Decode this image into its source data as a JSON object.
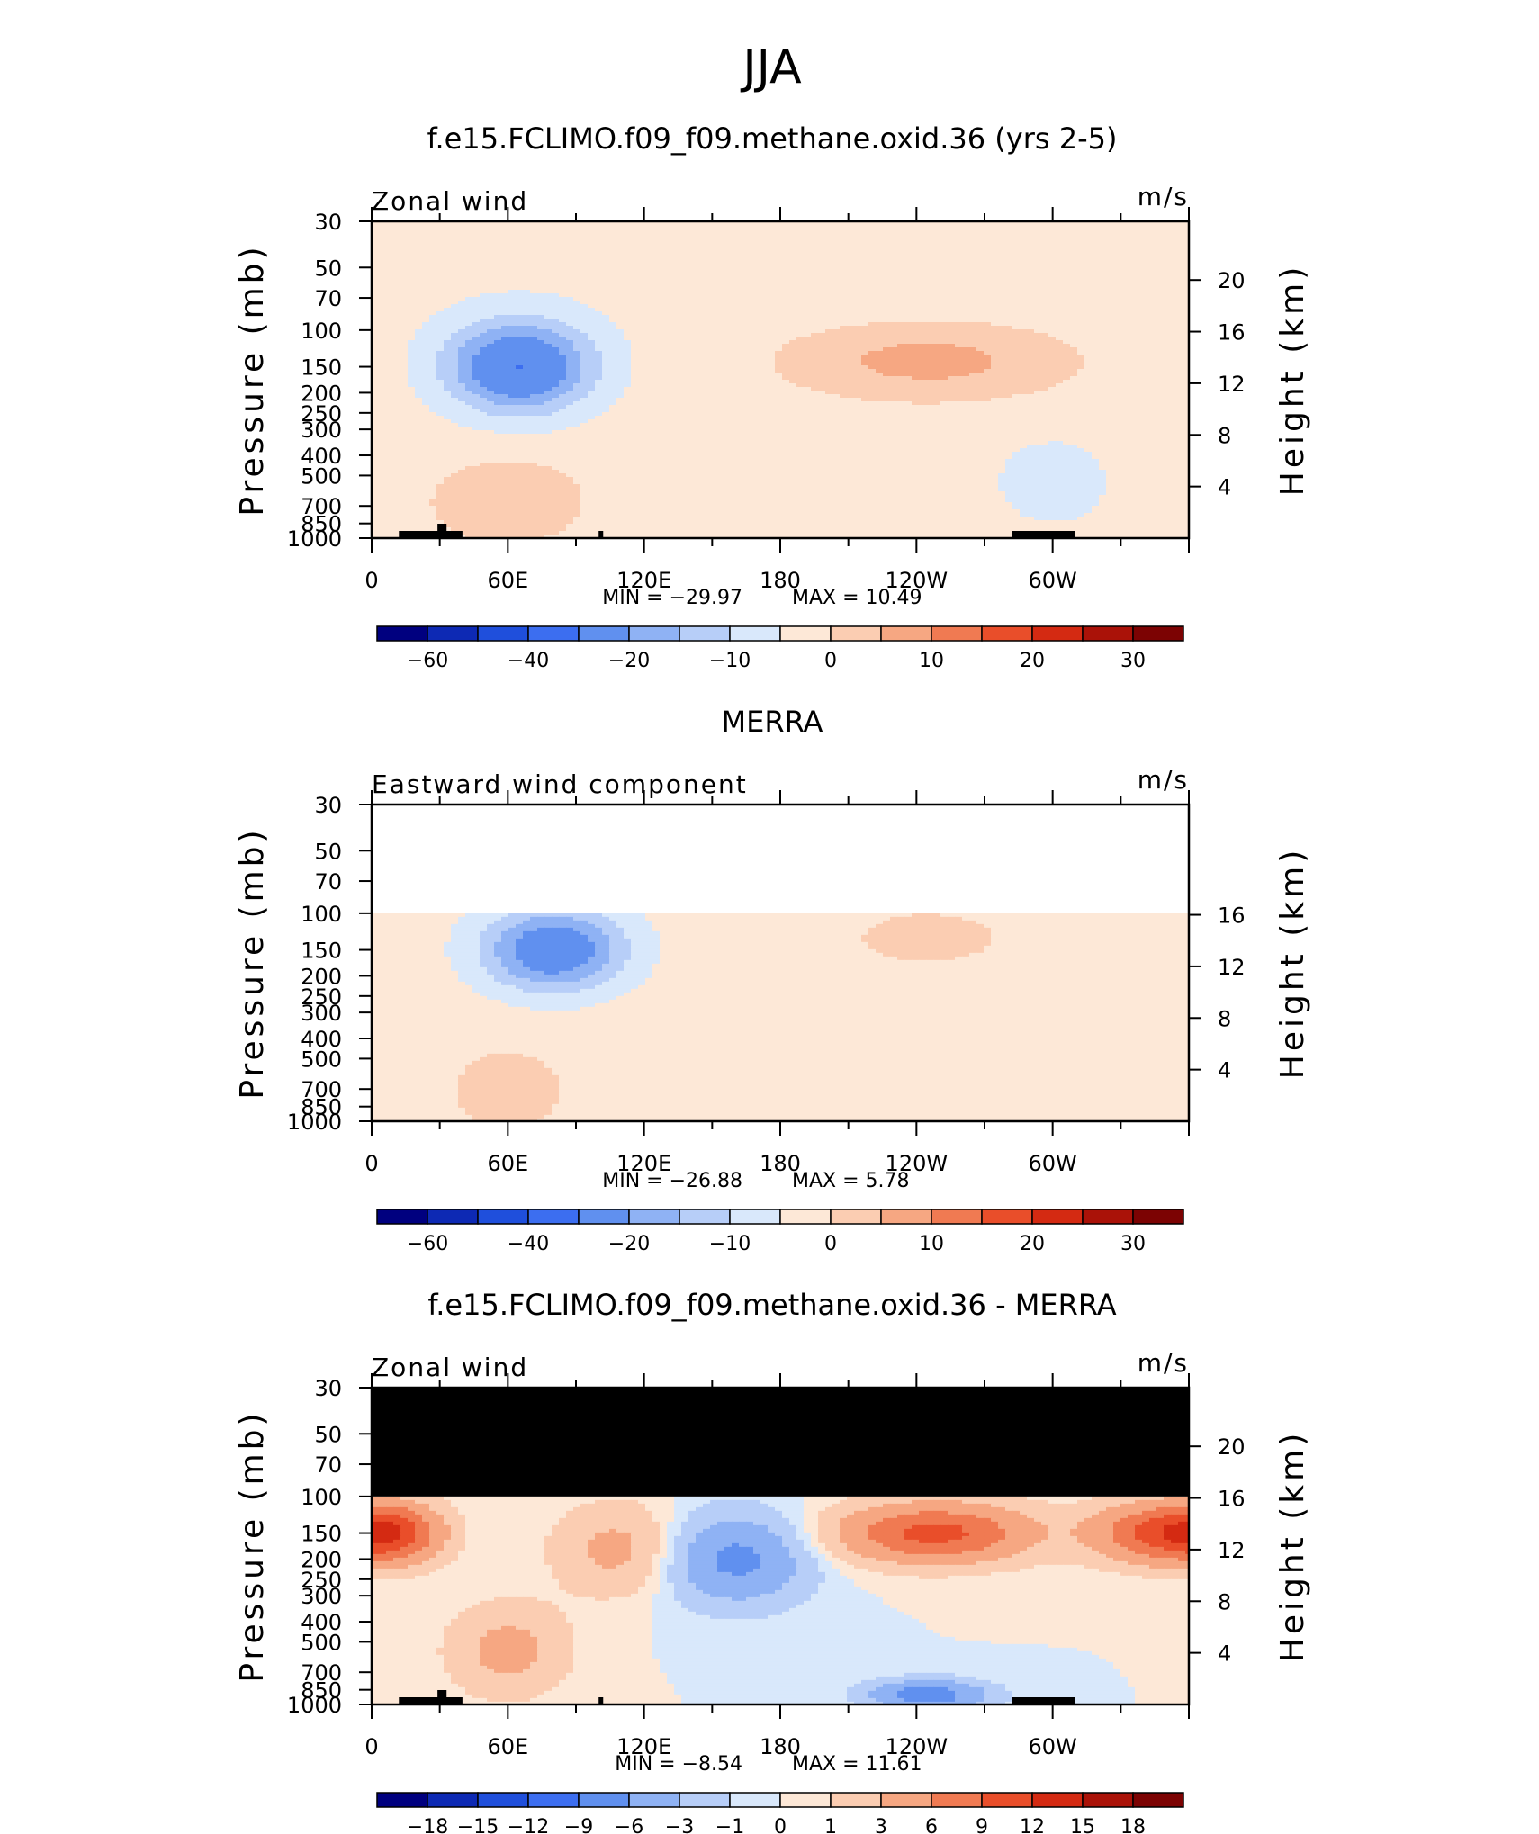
{
  "main_title": "JJA",
  "units": "m/s",
  "x_ticks": [
    "0",
    "60E",
    "120E",
    "180",
    "120W",
    "60W"
  ],
  "p_ticks": [
    "30",
    "50",
    "70",
    "100",
    "150",
    "200",
    "250",
    "300",
    "400",
    "500",
    "700",
    "850",
    "1000"
  ],
  "left_axis_label": "Pressure (mb)",
  "right_axis_label": "Height (km)",
  "colors": {
    "abs": [
      "#00007f",
      "#0d29b4",
      "#1f4fdc",
      "#3c6ef0",
      "#6090ef",
      "#8fb2f4",
      "#b7cef8",
      "#d9e8fb",
      "#fde8d7",
      "#fbcdb2",
      "#f6a782",
      "#f07a52",
      "#e94e2a",
      "#d42a12",
      "#aa1208",
      "#7c0303"
    ],
    "diff": [
      "#00007f",
      "#0d29b4",
      "#1f4fdc",
      "#3c6ef0",
      "#6090ef",
      "#8fb2f4",
      "#b7cef8",
      "#d9e8fb",
      "#fde8d7",
      "#fbcdb2",
      "#f6a782",
      "#f07a52",
      "#e94e2a",
      "#d42a12",
      "#aa1208",
      "#7c0303"
    ],
    "terrain": "#000000",
    "missing": "#ffffff"
  },
  "panels": [
    {
      "title": "f.e15.FCLIMO.f09_f09.methane.oxid.36 (yrs 2-5)",
      "var_label": "Zonal wind",
      "units": "m/s",
      "min_text": "MIN  =  −29.97",
      "max_text": "MAX  =    10.49",
      "height_ticks": [
        "20",
        "16",
        "12",
        "8",
        "4"
      ],
      "colorbar_labels": [
        "−60",
        "−40",
        "−20",
        "−10",
        "0",
        "10",
        "20",
        "30"
      ]
    },
    {
      "title": "MERRA",
      "var_label": "Eastward wind component",
      "units": "m/s",
      "min_text": "MIN  =  −26.88",
      "max_text": "MAX  =      5.78",
      "height_ticks": [
        "16",
        "12",
        "8",
        "4"
      ],
      "colorbar_labels": [
        "−60",
        "−40",
        "−20",
        "−10",
        "0",
        "10",
        "20",
        "30"
      ]
    },
    {
      "title": "f.e15.FCLIMO.f09_f09.methane.oxid.36 - MERRA",
      "var_label": "Zonal wind",
      "units": "m/s",
      "min_text": "MIN  =    −8.54",
      "max_text": "MAX  =    11.61",
      "height_ticks": [
        "20",
        "16",
        "12",
        "8",
        "4"
      ],
      "colorbar_labels": [
        "−18",
        "−15",
        "−12",
        "−9",
        "−6",
        "−3",
        "−1",
        "0",
        "1",
        "3",
        "6",
        "9",
        "12",
        "15",
        "18"
      ]
    }
  ],
  "chart_data": [
    {
      "type": "heatmap",
      "title": "f.e15.FCLIMO.f09_f09.methane.oxid.36 (yrs 2-5)",
      "variable": "Zonal wind",
      "units": "m/s",
      "x_range_deg": [
        0,
        360
      ],
      "y_range_mb": [
        1000,
        30
      ],
      "min": -29.97,
      "max": 10.49,
      "levels": [
        -70,
        -60,
        -50,
        -40,
        -30,
        -20,
        -15,
        -10,
        -5,
        0,
        5,
        10,
        15,
        20,
        25,
        30,
        35
      ],
      "features": [
        {
          "type": "jet",
          "lon": 65,
          "p": 150,
          "value": -27,
          "lon_width": 22,
          "p_log_width": 0.15
        },
        {
          "type": "jet",
          "lon": 245,
          "p": 140,
          "value": 10,
          "lon_width": 45,
          "p_log_width": 0.13
        },
        {
          "type": "jet",
          "lon": 60,
          "p": 650,
          "value": 7,
          "lon_width": 22,
          "p_log_width": 0.13
        },
        {
          "type": "jet",
          "lon": 300,
          "p": 550,
          "value": -6,
          "lon_width": 18,
          "p_log_width": 0.15
        }
      ],
      "background": {
        "upper_value": -4,
        "lower_value": -2
      },
      "surface": "land masking near lon 12-40, 100, 282-310"
    },
    {
      "type": "heatmap",
      "title": "MERRA",
      "variable": "Eastward wind component",
      "units": "m/s",
      "x_range_deg": [
        0,
        360
      ],
      "y_range_mb": [
        1000,
        30
      ],
      "data_top_mb": 100,
      "min": -26.88,
      "max": 5.78,
      "levels": [
        -70,
        -60,
        -50,
        -40,
        -30,
        -20,
        -15,
        -10,
        -5,
        0,
        5,
        10,
        15,
        20,
        25,
        30,
        35
      ],
      "features": [
        {
          "type": "jet",
          "lon": 80,
          "p": 150,
          "value": -24,
          "lon_width": 22,
          "p_log_width": 0.14
        },
        {
          "type": "jet",
          "lon": 60,
          "p": 700,
          "value": 4,
          "lon_width": 20,
          "p_log_width": 0.16
        },
        {
          "type": "jet",
          "lon": 245,
          "p": 130,
          "value": 4,
          "lon_width": 30,
          "p_log_width": 0.12
        }
      ],
      "background": {
        "upper_value": -3,
        "lower_value": -2
      }
    },
    {
      "type": "heatmap",
      "title": "f.e15.FCLIMO.f09_f09.methane.oxid.36 - MERRA",
      "variable": "Zonal wind",
      "units": "m/s",
      "x_range_deg": [
        0,
        360
      ],
      "y_range_mb": [
        1000,
        30
      ],
      "data_top_mb": 100,
      "min": -8.54,
      "max": 11.61,
      "levels": [
        -21,
        -18,
        -15,
        -12,
        -9,
        -6,
        -3,
        -1,
        0,
        1,
        3,
        6,
        9,
        12,
        15,
        18,
        21
      ],
      "features": [
        {
          "type": "jet",
          "lon": 10,
          "p": 150,
          "value": 9,
          "lon_width": 15,
          "p_log_width": 0.1
        },
        {
          "type": "jet",
          "lon": 248,
          "p": 150,
          "value": 10,
          "lon_width": 30,
          "p_log_width": 0.1
        },
        {
          "type": "jet",
          "lon": 345,
          "p": 150,
          "value": 9,
          "lon_width": 20,
          "p_log_width": 0.1
        },
        {
          "type": "jet",
          "lon": 160,
          "p": 200,
          "value": -7,
          "lon_width": 22,
          "p_log_width": 0.15
        },
        {
          "type": "jet",
          "lon": 110,
          "p": 180,
          "value": 4,
          "lon_width": 20,
          "p_log_width": 0.15
        },
        {
          "type": "jet",
          "lon": 60,
          "p": 550,
          "value": 4,
          "lon_width": 18,
          "p_log_width": 0.15
        },
        {
          "type": "jet",
          "lon": 245,
          "p": 900,
          "value": -8,
          "lon_width": 18,
          "p_log_width": 0.05
        }
      ],
      "background": {
        "upper_value": 0,
        "lower_value": 0
      },
      "surface": "land masking near lon 12-40, 100, 282-310"
    }
  ]
}
